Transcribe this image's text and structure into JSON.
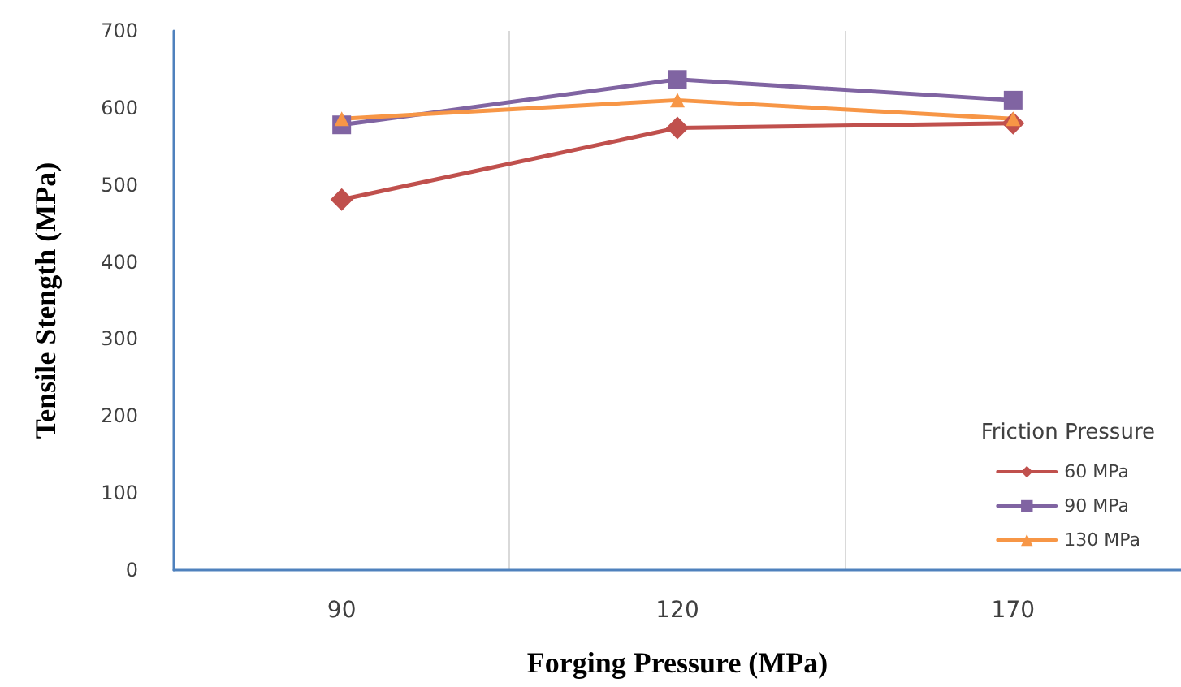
{
  "chart_data": {
    "type": "line",
    "xlabel": "Forging Pressure (MPa)",
    "ylabel": "Tensile Stength (MPa)",
    "legend_title": "Friction Pressure",
    "categories": [
      "90",
      "120",
      "170"
    ],
    "series": [
      {
        "name": "60 MPa",
        "color": "#c0504d",
        "marker": "diamond",
        "values": [
          481,
          574,
          580
        ]
      },
      {
        "name": "90 MPa",
        "color": "#8064a2",
        "marker": "square",
        "values": [
          578,
          637,
          610
        ]
      },
      {
        "name": "130 MPa",
        "color": "#f79646",
        "marker": "triangle",
        "values": [
          586,
          610,
          586
        ]
      }
    ],
    "ylim": [
      0,
      700
    ],
    "yticks": [
      0,
      100,
      200,
      300,
      400,
      500,
      600,
      700
    ],
    "grid": "x",
    "legend": "bottom right"
  }
}
